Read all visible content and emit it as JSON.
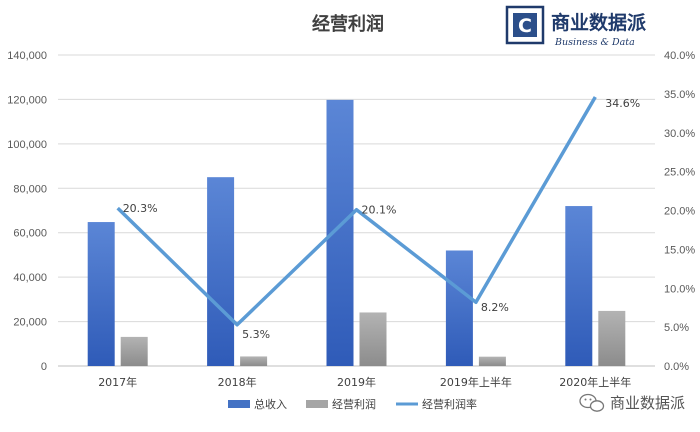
{
  "chart_data": {
    "type": "bar",
    "title": "经营利润",
    "categories": [
      "2017年",
      "2018年",
      "2019年",
      "2019年上半年",
      "2020年上半年"
    ],
    "series": [
      {
        "name": "总收入",
        "type": "bar",
        "axis": "left",
        "color": "#4472c4",
        "values": [
          64800,
          85000,
          119800,
          52000,
          72000
        ]
      },
      {
        "name": "经营利润",
        "type": "bar",
        "axis": "left",
        "color": "#a5a5a5",
        "values": [
          13100,
          4300,
          24100,
          4200,
          24800
        ]
      },
      {
        "name": "经营利润率",
        "type": "line",
        "axis": "right",
        "color": "#5b9bd5",
        "values": [
          20.3,
          5.3,
          20.1,
          8.2,
          34.6
        ],
        "labels": [
          "20.3%",
          "5.3%",
          "20.1%",
          "8.2%",
          "34.6%"
        ]
      }
    ],
    "yleft": {
      "min": 0,
      "max": 140000,
      "ticks": [
        "0",
        "20,000",
        "40,000",
        "60,000",
        "80,000",
        "100,000",
        "120,000",
        "140,000"
      ]
    },
    "yright": {
      "min": 0,
      "max": 40,
      "ticks": [
        "0.0%",
        "5.0%",
        "10.0%",
        "15.0%",
        "20.0%",
        "25.0%",
        "30.0%",
        "35.0%",
        "40.0%"
      ]
    },
    "grid": true,
    "legend": "bottom"
  },
  "logo": {
    "main": "商业数据派",
    "sub": "Business & Data",
    "icon": "c-box-logo-icon"
  },
  "watermark": {
    "text": "商业数据派",
    "icon": "wechat-icon"
  }
}
